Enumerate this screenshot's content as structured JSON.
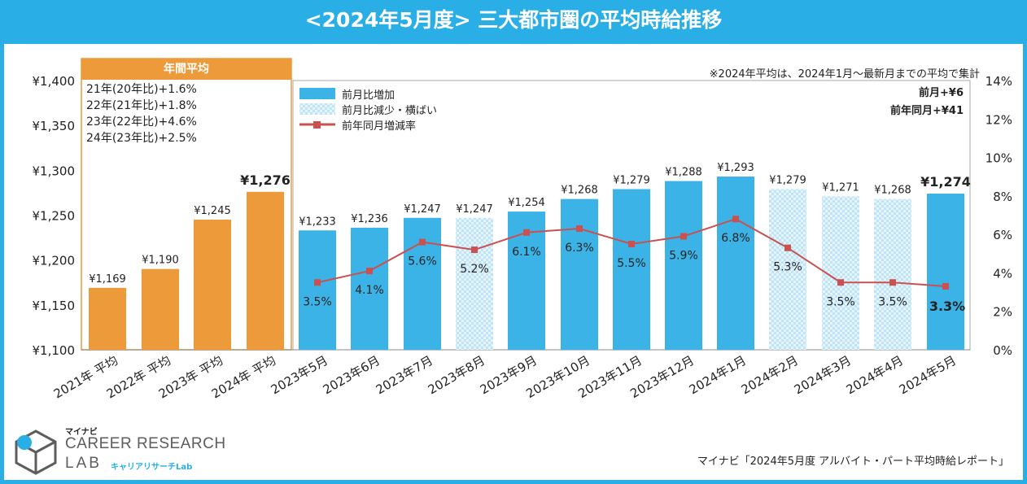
{
  "title": "<2024年5月度> 三大都市圏の平均時給推移",
  "annual_header": "年間平均",
  "annual_notes": [
    "21年(20年比)+1.6%",
    "22年(21年比)+1.8%",
    "23年(22年比)+4.6%",
    "24年(23年比)+2.5%"
  ],
  "note": "※2024年平均は、2024年1月～最新月までの平均で集計",
  "mom_label": "前月+¥6",
  "yoy_label": "前年同月+¥41",
  "source": "マイナビ「2024年5月度 アルバイト・パート平均時給レポート」",
  "logo": {
    "small": "マイナビ",
    "line1": "CAREER RESEARCH",
    "line2": "LAB",
    "line3": "キャリアリサーチLab"
  },
  "colors": {
    "frame": "#29aee6",
    "annual_bar": "#ec9a3a",
    "increase_bar": "#3bb3e6",
    "decrease_bar": "#b9e2f6",
    "line": "#c9514f"
  },
  "chart_data": {
    "type": "bar",
    "title": "<2024年5月度> 三大都市圏の平均時給推移",
    "categories": [
      "2021年 平均",
      "2022年 平均",
      "2023年 平均",
      "2024年 平均",
      "2023年5月",
      "2023年6月",
      "2023年7月",
      "2023年8月",
      "2023年9月",
      "2023年10月",
      "2023年11月",
      "2023年12月",
      "2024年1月",
      "2024年2月",
      "2024年3月",
      "2024年4月",
      "2024年5月"
    ],
    "values": [
      1169,
      1190,
      1245,
      1276,
      1233,
      1236,
      1247,
      1247,
      1254,
      1268,
      1279,
      1288,
      1293,
      1279,
      1271,
      1268,
      1274
    ],
    "value_labels": [
      "¥1,169",
      "¥1,190",
      "¥1,245",
      "¥1,276",
      "¥1,233",
      "¥1,236",
      "¥1,247",
      "¥1,247",
      "¥1,254",
      "¥1,268",
      "¥1,279",
      "¥1,288",
      "¥1,293",
      "¥1,279",
      "¥1,271",
      "¥1,268",
      "¥1,274"
    ],
    "bar_kind": [
      "annual",
      "annual",
      "annual",
      "annual",
      "increase",
      "increase",
      "increase",
      "flat_or_decrease",
      "increase",
      "increase",
      "increase",
      "increase",
      "increase",
      "flat_or_decrease",
      "flat_or_decrease",
      "flat_or_decrease",
      "increase"
    ],
    "series_line": {
      "name": "前年同月増減率",
      "start_index": 4,
      "values": [
        3.5,
        4.1,
        5.6,
        5.2,
        6.1,
        6.3,
        5.5,
        5.9,
        6.8,
        5.3,
        3.5,
        3.5,
        3.3
      ],
      "labels": [
        "3.5%",
        "4.1%",
        "5.6%",
        "5.2%",
        "6.1%",
        "6.3%",
        "5.5%",
        "5.9%",
        "6.8%",
        "5.3%",
        "3.5%",
        "3.5%",
        "3.3%"
      ]
    },
    "legend": [
      "前月比増加",
      "前月比減少・横ばい",
      "前年同月増減率"
    ],
    "ylim": [
      1100,
      1400
    ],
    "y_ticks": [
      1100,
      1150,
      1200,
      1250,
      1300,
      1350,
      1400
    ],
    "y_tick_labels": [
      "¥1,100",
      "¥1,150",
      "¥1,200",
      "¥1,250",
      "¥1,300",
      "¥1,350",
      "¥1,400"
    ],
    "y2lim": [
      0,
      14
    ],
    "y2_ticks": [
      0,
      2,
      4,
      6,
      8,
      10,
      12,
      14
    ],
    "y2_tick_labels": [
      "0%",
      "2%",
      "4%",
      "6%",
      "8%",
      "10%",
      "12%",
      "14%"
    ]
  }
}
